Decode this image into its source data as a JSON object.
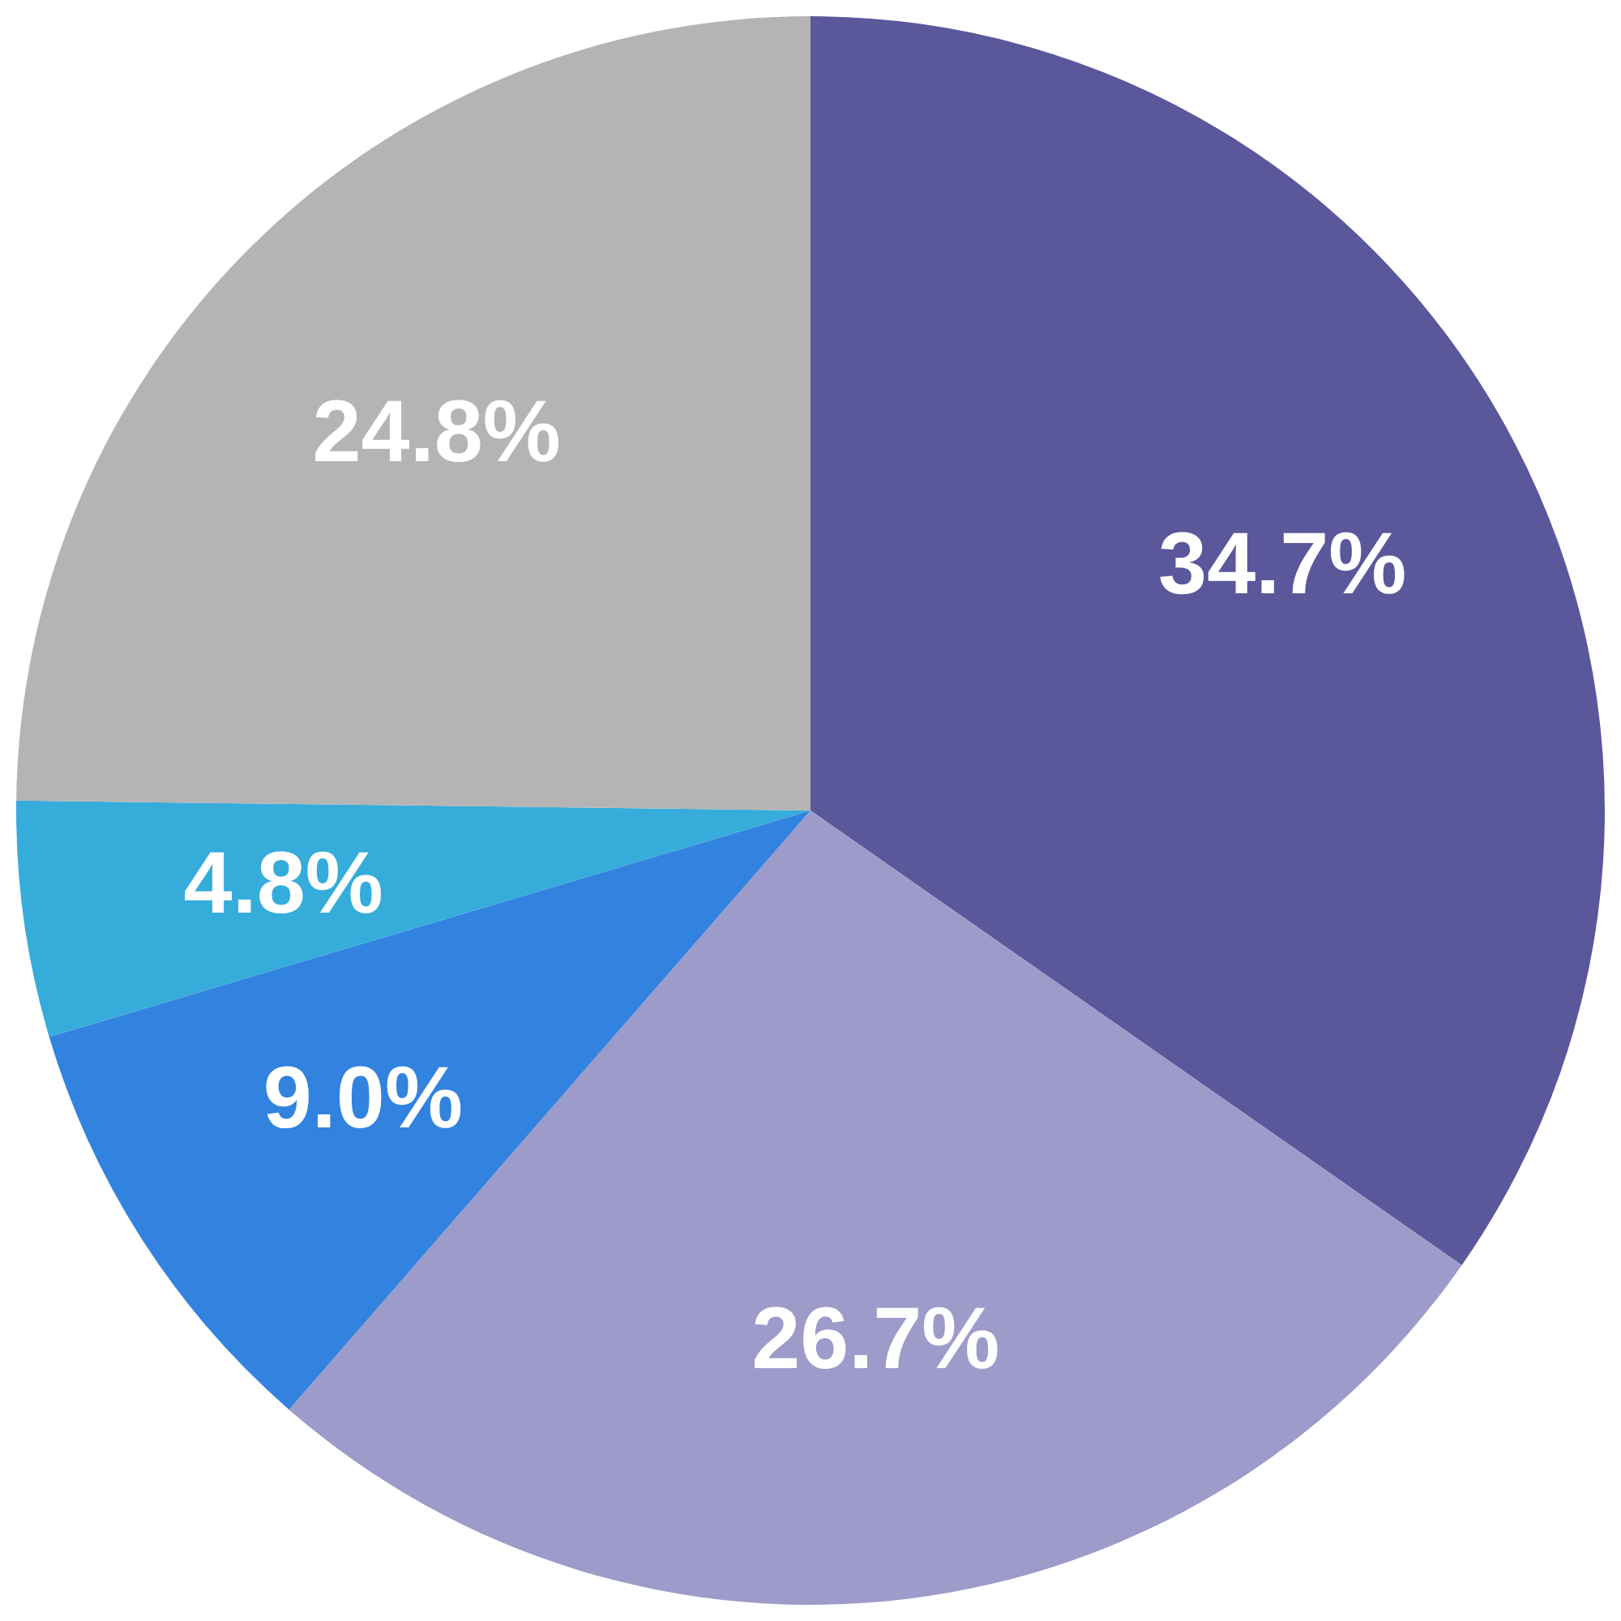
{
  "chart_data": {
    "type": "pie",
    "categories": [
      null,
      null,
      null,
      null,
      null
    ],
    "values": [
      34.7,
      26.7,
      9.0,
      4.8,
      24.8
    ],
    "colors": [
      "#5b579b",
      "#9d9bc9",
      "#3282e0",
      "#36acdb",
      "#b4b4b4"
    ],
    "value_labels": [
      "34.7%",
      "26.7%",
      "9.0%",
      "4.8%",
      "24.8%"
    ]
  }
}
